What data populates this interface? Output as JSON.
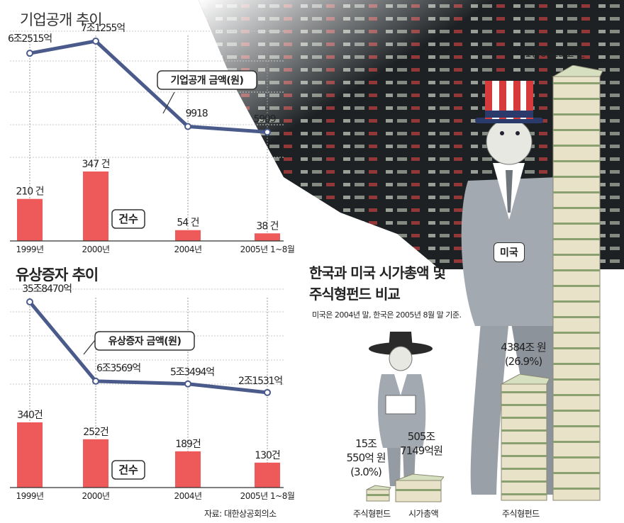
{
  "chart_data": [
    {
      "type": "line",
      "title": "기업공개 추이",
      "categories": [
        "1999년",
        "2000년",
        "2004년",
        "2005년 1~8월"
      ],
      "series": [
        {
          "name": "기업공개 금액(원)",
          "values": [
            "6조2515억",
            "7조1255억",
            "9918",
            "5909"
          ]
        }
      ],
      "callout": "기업공개 금액(원)"
    },
    {
      "type": "bar",
      "title": "기업공개 추이",
      "categories": [
        "1999년",
        "2000년",
        "2004년",
        "2005년 1~8월"
      ],
      "series": [
        {
          "name": "건수",
          "values": [
            210,
            347,
            54,
            38
          ]
        }
      ],
      "value_labels": [
        "210 건",
        "347 건",
        "54 건",
        "38 건"
      ],
      "legend_label": "건수"
    },
    {
      "type": "line",
      "title": "유상증자 추이",
      "categories": [
        "1999년",
        "2000년",
        "2004년",
        "2005년 1~8월"
      ],
      "series": [
        {
          "name": "유상증자 금액(원)",
          "values": [
            "35조8470억",
            "6조3569억",
            "5조3494억",
            "2조1531억"
          ]
        }
      ],
      "callout": "유상증자 금액(원)"
    },
    {
      "type": "bar",
      "title": "유상증자 추이",
      "categories": [
        "1999년",
        "2000년",
        "2004년",
        "2005년 1~8월"
      ],
      "series": [
        {
          "name": "건수",
          "values": [
            340,
            252,
            189,
            130
          ]
        }
      ],
      "value_labels": [
        "340건",
        "252건",
        "189건",
        "130건"
      ],
      "legend_label": "건수"
    }
  ],
  "ipo": {
    "title": "기업공개 추이"
  },
  "rights": {
    "title": "유상증자 추이"
  },
  "source": "자료: 대한상공회의소",
  "comparison": {
    "title_line1": "한국과 미국 시가총액 및",
    "title_line2": "주식형펀드 비교",
    "note": "미국은 2004년 말, 한국은 2005년 8월 말 기준.",
    "us_label": "미국",
    "us_market_cap": "1경6323조 원",
    "us_fund_line1": "4384조 원",
    "us_fund_line2": "(26.9%)",
    "us_fund_caption": "주식형펀드",
    "kr_fund_line1": "15조",
    "kr_fund_line2": "550억 원",
    "kr_fund_line3": "(3.0%)",
    "kr_cap_line1": "505조",
    "kr_cap_line2": "7149억원",
    "kr_fund_caption": "주식형펀드",
    "kr_cap_caption": "시가총액"
  },
  "colors": {
    "bar": "#ee5a5a",
    "line": "#4a5a8a",
    "suit": "#9aa0a8",
    "money": "#e8e2c8",
    "money_band": "#8aa070"
  }
}
